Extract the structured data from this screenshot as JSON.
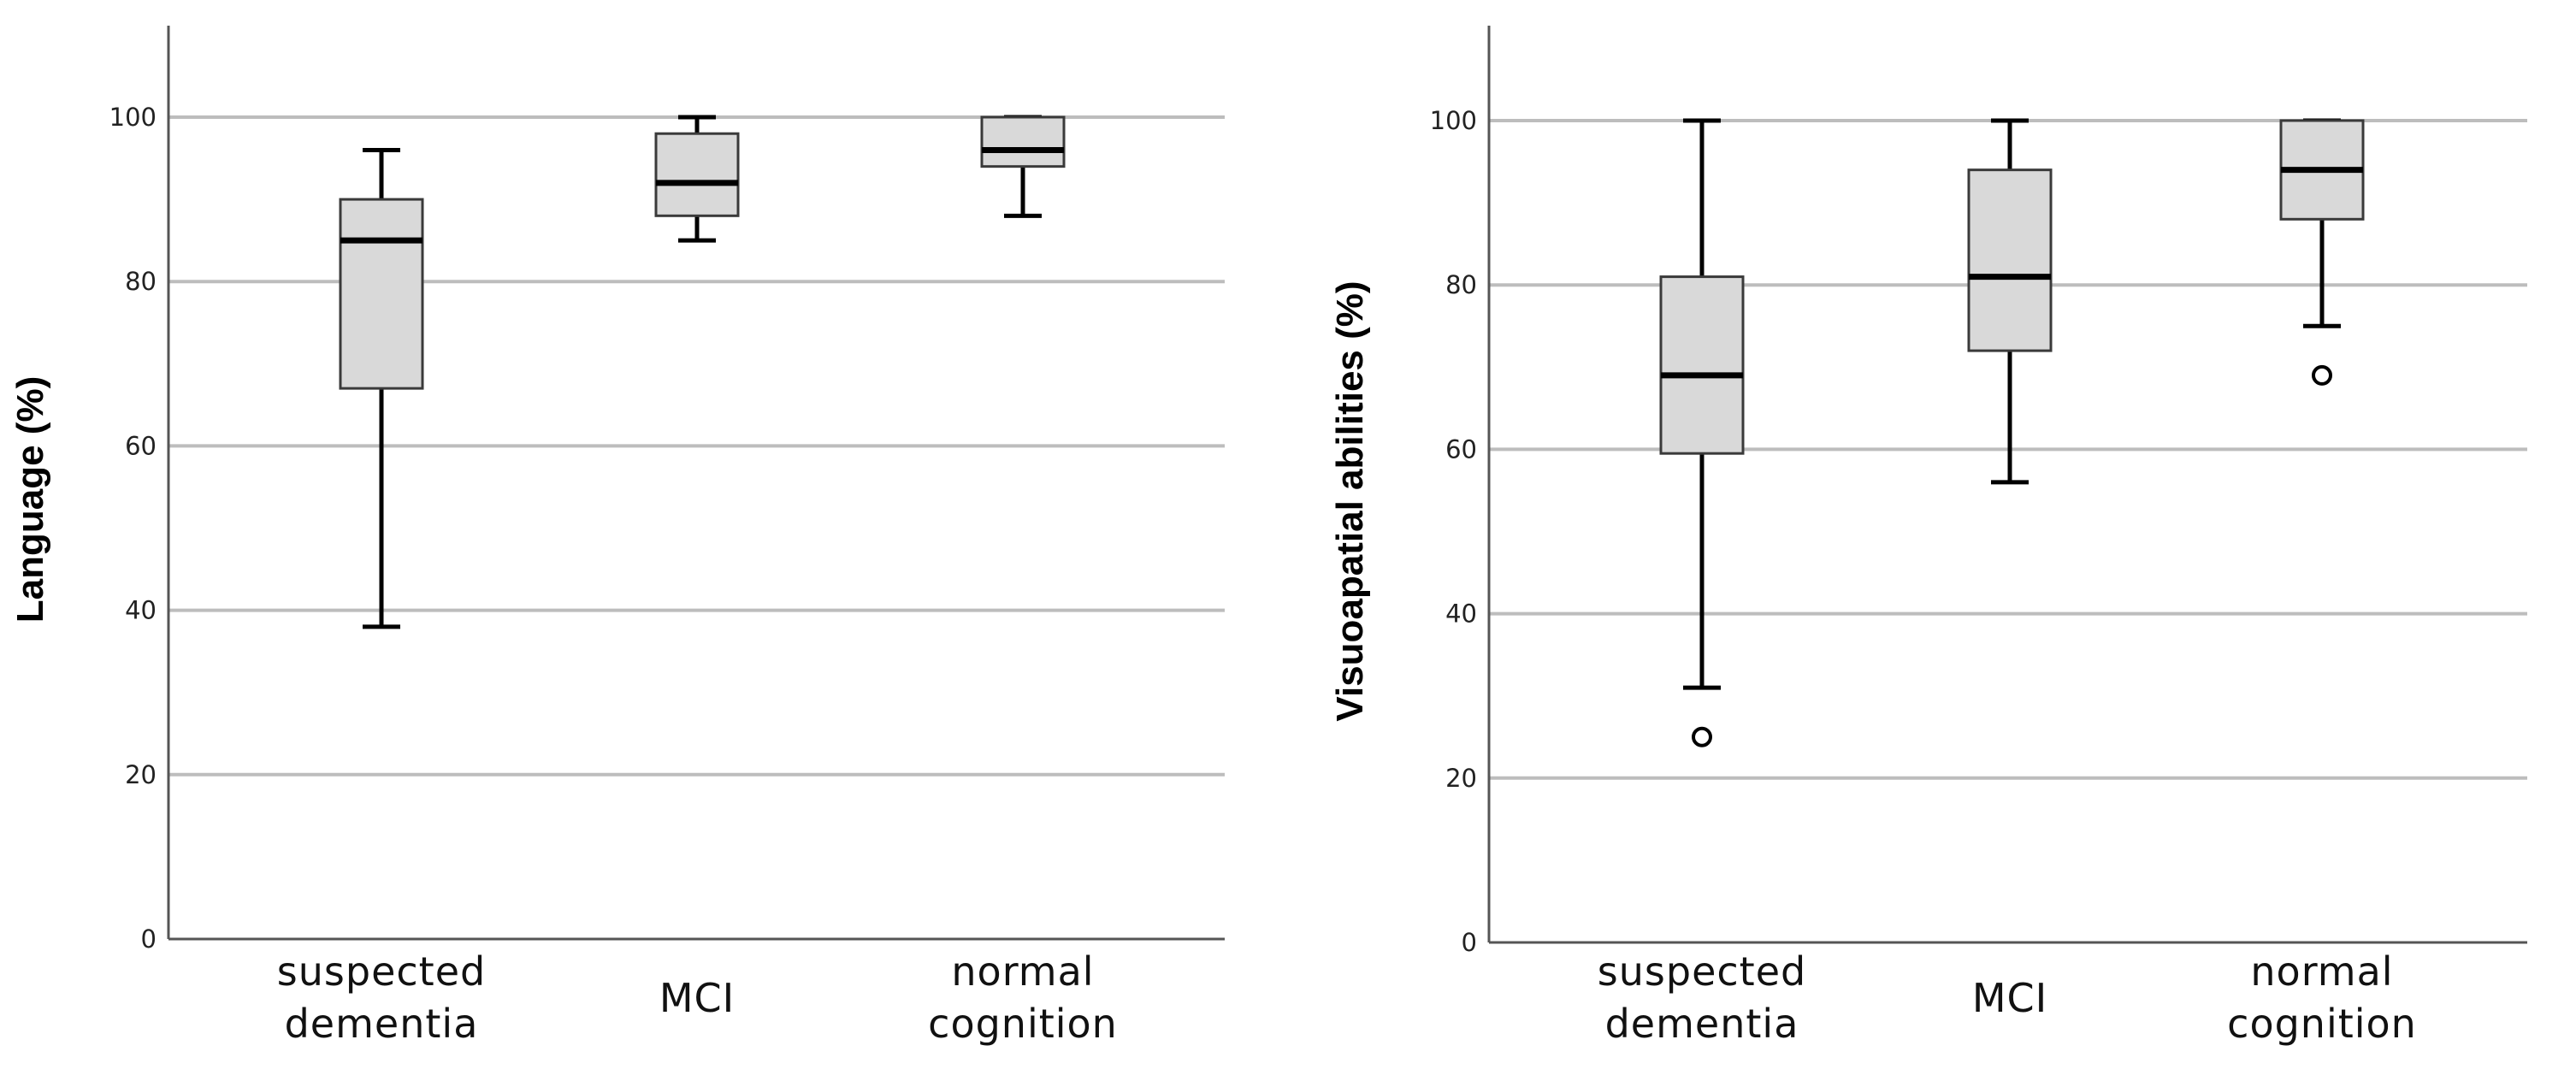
{
  "chart_data": [
    {
      "type": "boxplot",
      "title": "",
      "xlabel": "",
      "ylabel": "Language (%)",
      "ylim": [
        0,
        110
      ],
      "yticks": [
        0,
        20,
        40,
        60,
        80,
        100
      ],
      "grid": true,
      "categories": [
        {
          "lines": [
            "suspected",
            "dementia"
          ]
        },
        {
          "lines": [
            "MCI"
          ]
        },
        {
          "lines": [
            "normal",
            "cognition"
          ]
        }
      ],
      "boxes": [
        {
          "min": 38,
          "q1": 67,
          "median": 85,
          "q3": 90,
          "max": 96,
          "outliers": []
        },
        {
          "min": 85,
          "q1": 88,
          "median": 92,
          "q3": 98,
          "max": 100,
          "outliers": []
        },
        {
          "min": 88,
          "q1": 94,
          "median": 96,
          "q3": 100,
          "max": 100,
          "outliers": []
        }
      ]
    },
    {
      "type": "boxplot",
      "title": "",
      "xlabel": "",
      "ylabel": "Visuoapatial abilities (%)",
      "ylim": [
        0,
        110
      ],
      "yticks": [
        0,
        20,
        40,
        60,
        80,
        100
      ],
      "grid": true,
      "categories": [
        {
          "lines": [
            "suspected",
            "dementia"
          ]
        },
        {
          "lines": [
            "MCI"
          ]
        },
        {
          "lines": [
            "normal",
            "cognition"
          ]
        }
      ],
      "boxes": [
        {
          "min": 31,
          "q1": 59.5,
          "median": 69,
          "q3": 81,
          "max": 100,
          "outliers": [
            25
          ]
        },
        {
          "min": 56,
          "q1": 72,
          "median": 81,
          "q3": 94,
          "max": 100,
          "outliers": []
        },
        {
          "min": 75,
          "q1": 88,
          "median": 94,
          "q3": 100,
          "max": 100,
          "outliers": [
            69
          ]
        }
      ]
    }
  ]
}
